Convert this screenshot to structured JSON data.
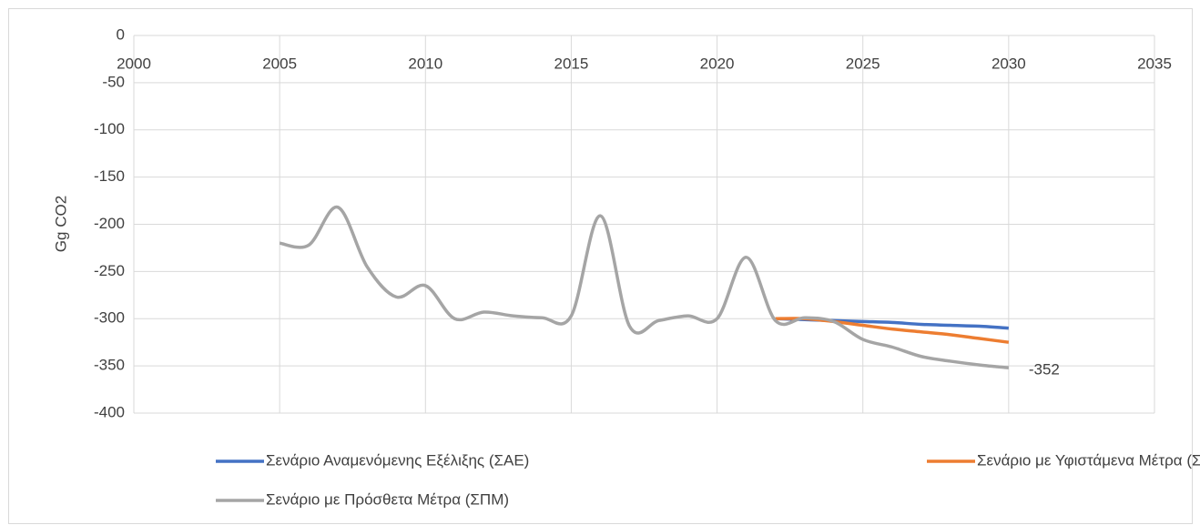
{
  "chart_data": {
    "type": "line",
    "y_label": "Gg CO2",
    "x": [
      2005,
      2006,
      2007,
      2008,
      2009,
      2010,
      2011,
      2012,
      2013,
      2014,
      2015,
      2016,
      2017,
      2018,
      2019,
      2020,
      2021,
      2022,
      2023,
      2024,
      2025,
      2026,
      2027,
      2028,
      2029,
      2030
    ],
    "series": [
      {
        "name": "Σενάριο Αναμενόμενης Εξέλιξης (ΣΑΕ)",
        "color": "#4472c4",
        "values": [
          null,
          null,
          null,
          null,
          null,
          null,
          null,
          null,
          null,
          null,
          null,
          null,
          null,
          null,
          null,
          null,
          null,
          -300,
          -301,
          -302,
          -303,
          -304,
          -306,
          -307,
          -308,
          -310
        ]
      },
      {
        "name": "Σενάριο με Υφιστάμενα Μέτρα (ΣΥΜ)",
        "color": "#ed7d31",
        "values": [
          null,
          null,
          null,
          null,
          null,
          null,
          null,
          null,
          null,
          null,
          null,
          null,
          null,
          null,
          null,
          null,
          null,
          -300,
          -300,
          -303,
          -307,
          -311,
          -314,
          -317,
          -321,
          -325
        ]
      },
      {
        "name": "Σενάριο με Πρόσθετα Μέτρα (ΣΠΜ)",
        "color": "#a5a5a5",
        "values": [
          -220,
          -222,
          -182,
          -245,
          -277,
          -265,
          -300,
          -293,
          -297,
          -299,
          -297,
          -191,
          -308,
          -302,
          -297,
          -300,
          -235,
          -302,
          -299,
          -303,
          -322,
          -330,
          -340,
          -345,
          -349,
          -352
        ]
      }
    ],
    "xlim": [
      2000,
      2035
    ],
    "xticks": [
      2000,
      2005,
      2010,
      2015,
      2020,
      2025,
      2030,
      2035
    ],
    "ylim": [
      -400,
      0
    ],
    "yticks": [
      0,
      -50,
      -100,
      -150,
      -200,
      -250,
      -300,
      -350,
      -400
    ],
    "grid": true,
    "legend": "bottom"
  }
}
